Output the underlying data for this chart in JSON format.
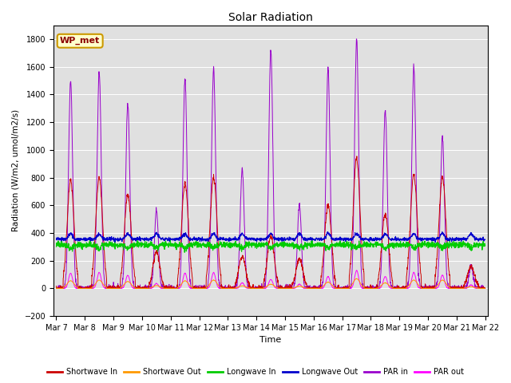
{
  "title": "Solar Radiation",
  "ylabel": "Radiation (W/m2, umol/m2/s)",
  "xlabel": "Time",
  "ylim": [
    -200,
    1900
  ],
  "yticks": [
    -200,
    0,
    200,
    400,
    600,
    800,
    1000,
    1200,
    1400,
    1600,
    1800
  ],
  "xtick_labels": [
    "Mar 7",
    "Mar 8",
    "Mar 9",
    "Mar 10",
    "Mar 11",
    "Mar 12",
    "Mar 13",
    "Mar 14",
    "Mar 15",
    "Mar 16",
    "Mar 17",
    "Mar 18",
    "Mar 19",
    "Mar 20",
    "Mar 21",
    "Mar 22"
  ],
  "bg_color": "#e0e0e0",
  "legend_label": "WP_met",
  "series": {
    "shortwave_in": {
      "color": "#cc0000",
      "label": "Shortwave In"
    },
    "shortwave_out": {
      "color": "#ff9900",
      "label": "Shortwave Out"
    },
    "longwave_in": {
      "color": "#00cc00",
      "label": "Longwave In"
    },
    "longwave_out": {
      "color": "#0000cc",
      "label": "Longwave Out"
    },
    "par_in": {
      "color": "#9900cc",
      "label": "PAR in"
    },
    "par_out": {
      "color": "#ff00ff",
      "label": "PAR out"
    }
  },
  "n_days": 15,
  "pts_per_day": 144,
  "sw_in_peaks": [
    780,
    800,
    680,
    260,
    760,
    800,
    230,
    380,
    210,
    600,
    940,
    540,
    820,
    810,
    160
  ],
  "sw_out_peaks": [
    55,
    60,
    50,
    20,
    55,
    60,
    18,
    30,
    16,
    45,
    70,
    40,
    60,
    60,
    12
  ],
  "par_in_peaks": [
    1500,
    1560,
    1340,
    560,
    1510,
    1590,
    860,
    1730,
    600,
    1580,
    1800,
    1280,
    1600,
    1090,
    165
  ],
  "par_out_peaks": [
    110,
    115,
    95,
    35,
    110,
    115,
    40,
    65,
    30,
    85,
    130,
    85,
    115,
    95,
    25
  ],
  "lw_in_base": 315,
  "lw_out_base": 355
}
